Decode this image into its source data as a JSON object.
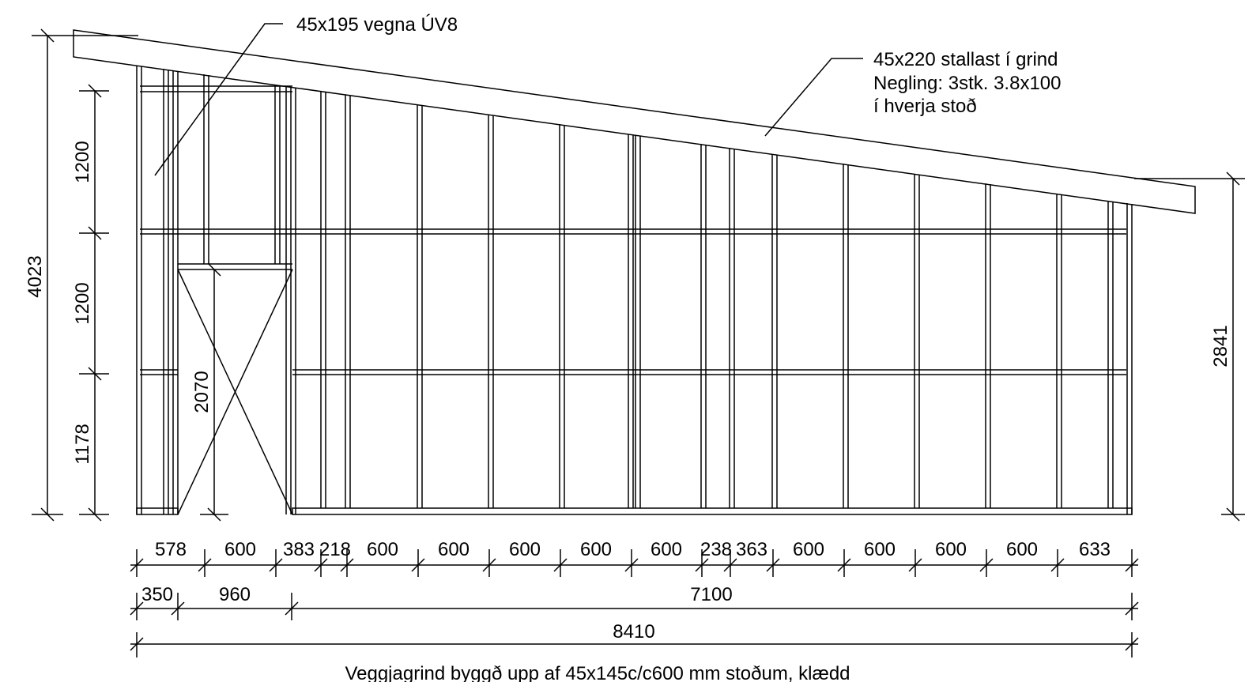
{
  "annotations": {
    "rafter_top": "45x195 vegna ÚV8",
    "rafter_main_line1": "45x220 stallast í grind",
    "rafter_main_line2": "Negling: 3stk. 3.8x100",
    "rafter_main_line3": "í hverja stoð"
  },
  "dimensions": {
    "height_total": "4023",
    "height_right": "2841",
    "vertical_segments": [
      "1200",
      "1200",
      "1178"
    ],
    "door_height": "2070",
    "stud_spacing": [
      "578",
      "600",
      "383",
      "218",
      "600",
      "600",
      "600",
      "600",
      "600",
      "238",
      "363",
      "600",
      "600",
      "600",
      "600",
      "633"
    ],
    "middle_row": [
      "350",
      "960",
      "7100"
    ],
    "total_length": "8410"
  },
  "caption": "Veggjagrind byggð upp af 45x145c/c600 mm stoðum, klædd"
}
